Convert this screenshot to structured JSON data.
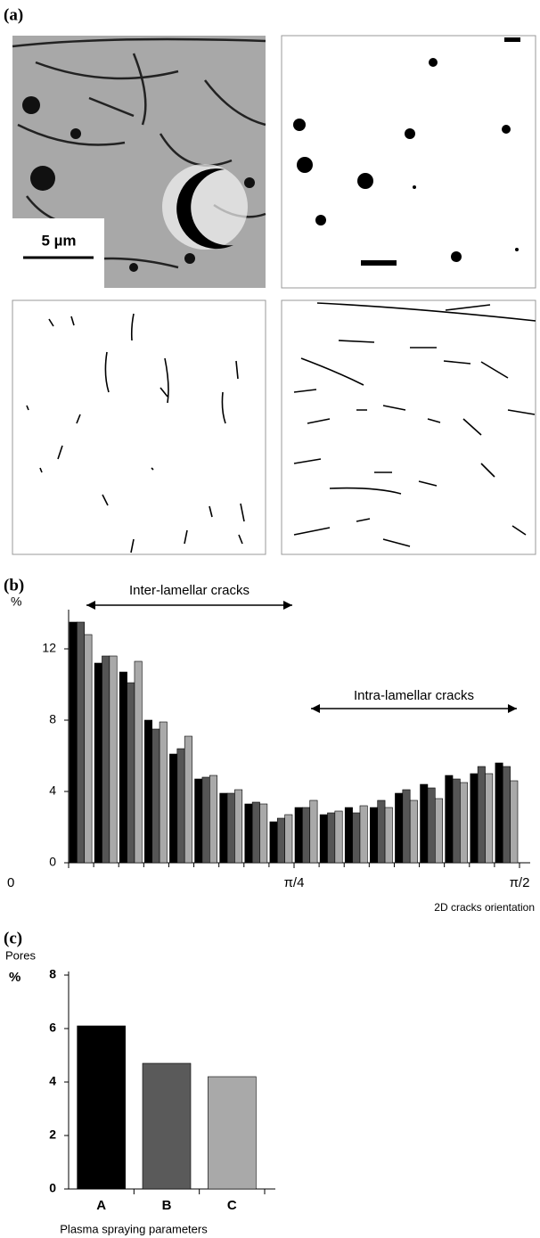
{
  "panel_a": {
    "label": "(a)",
    "scale_bar": "5 µm"
  },
  "chart_data": [
    {
      "type": "bar",
      "panel_label": "(b)",
      "ylabel": "%",
      "xlabel": "2D cracks orientation",
      "categories": [
        null,
        null,
        null,
        null,
        null,
        null,
        null,
        null,
        null,
        null,
        null,
        null,
        null,
        null,
        null,
        null,
        null,
        null
      ],
      "series": [
        {
          "color": "#000000",
          "values": [
            13.5,
            11.2,
            10.7,
            8.0,
            6.1,
            4.7,
            3.9,
            3.3,
            2.3,
            3.1,
            2.7,
            3.1,
            3.1,
            3.9,
            4.4,
            4.9,
            5.0,
            5.6
          ]
        },
        {
          "color": "#555555",
          "values": [
            13.5,
            11.6,
            10.1,
            7.5,
            6.4,
            4.8,
            3.9,
            3.4,
            2.5,
            3.1,
            2.8,
            2.8,
            3.5,
            4.1,
            4.2,
            4.7,
            5.4,
            5.4
          ]
        },
        {
          "color": "#a9a9a9",
          "values": [
            12.8,
            11.6,
            11.3,
            7.9,
            7.1,
            4.9,
            4.1,
            3.3,
            2.7,
            3.5,
            2.9,
            3.2,
            3.1,
            3.5,
            3.6,
            4.5,
            5.0,
            4.6
          ]
        }
      ],
      "ylim": [
        0,
        14
      ],
      "yticks": [
        0,
        4,
        8,
        12
      ],
      "xlim": [
        0,
        1.5708
      ],
      "xticks": [
        0,
        {
          "value": 0.7854,
          "label": "π/4"
        },
        {
          "value": 1.5708,
          "label": "π/2"
        }
      ],
      "annotations": [
        "Inter-lamellar cracks",
        "Intra-lamellar cracks"
      ]
    },
    {
      "type": "bar",
      "panel_label": "(c)",
      "ylabel": "Pores",
      "yunit": "%",
      "xlabel": "Plasma spraying parameters",
      "categories": [
        "A",
        "B",
        "C"
      ],
      "values": [
        6.1,
        4.7,
        4.2
      ],
      "colors": [
        "#000000",
        "#5a5a5a",
        "#a9a9a9"
      ],
      "ylim": [
        0,
        8
      ],
      "yticks": [
        0,
        2,
        4,
        6,
        8
      ]
    }
  ]
}
